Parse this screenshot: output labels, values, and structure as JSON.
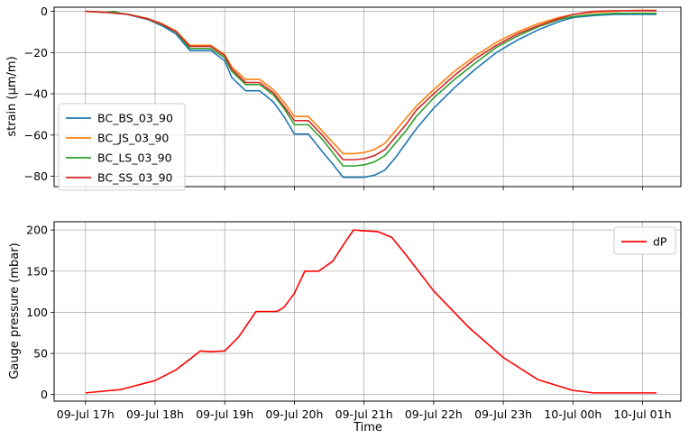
{
  "chart_data": [
    {
      "type": "line",
      "ylabel": "strain (μm/m)",
      "ylim": [
        -85,
        2
      ],
      "yticks": [
        0,
        -20,
        -40,
        -60,
        -80
      ],
      "xlim": [
        -0.45,
        8.55
      ],
      "xtick_positions": [
        0,
        1,
        2,
        3,
        4,
        5,
        6,
        7,
        8
      ],
      "grid": true,
      "legend_position": "center-left",
      "series": [
        {
          "name": "BC_BS_03_90",
          "color": "#1f77b4",
          "x": [
            0.0,
            0.3,
            0.6,
            0.9,
            1.1,
            1.3,
            1.5,
            1.65,
            1.8,
            2.0,
            2.1,
            2.3,
            2.5,
            2.7,
            2.85,
            3.0,
            3.2,
            3.4,
            3.55,
            3.7,
            3.85,
            4.0,
            4.15,
            4.3,
            4.45,
            4.6,
            4.75,
            5.0,
            5.3,
            5.6,
            5.9,
            6.2,
            6.5,
            6.8,
            7.0,
            7.3,
            7.6,
            7.9,
            8.2
          ],
          "y": [
            0,
            -0.5,
            -1.5,
            -4,
            -7,
            -11,
            -19,
            -19,
            -19,
            -24,
            -32,
            -38.5,
            -38.5,
            -44,
            -51,
            -59.5,
            -59.5,
            -68,
            -74,
            -80.5,
            -80.5,
            -80.5,
            -79.5,
            -77,
            -71,
            -64,
            -57,
            -47,
            -37,
            -28,
            -20,
            -14,
            -9,
            -5,
            -3,
            -2,
            -1.5,
            -1.5,
            -1.5
          ]
        },
        {
          "name": "BC_JS_03_90",
          "color": "#ff7f0e",
          "x": [
            0.0,
            0.3,
            0.6,
            0.9,
            1.1,
            1.3,
            1.5,
            1.65,
            1.8,
            2.0,
            2.1,
            2.3,
            2.5,
            2.7,
            2.85,
            3.0,
            3.2,
            3.4,
            3.55,
            3.7,
            3.85,
            4.0,
            4.15,
            4.3,
            4.45,
            4.6,
            4.75,
            5.0,
            5.3,
            5.6,
            5.9,
            6.2,
            6.5,
            6.8,
            7.0,
            7.3,
            7.6,
            7.9,
            8.2
          ],
          "y": [
            0,
            -0.5,
            -1.3,
            -3.5,
            -6,
            -9.5,
            -16.5,
            -16.5,
            -16.5,
            -21,
            -27,
            -33,
            -33,
            -38,
            -44,
            -51,
            -51,
            -58,
            -63.5,
            -69,
            -69,
            -68.5,
            -67,
            -64,
            -58,
            -52,
            -46,
            -38,
            -29,
            -21.5,
            -15,
            -10,
            -6,
            -3,
            -1.5,
            -0.5,
            0,
            0.5,
            0.5
          ]
        },
        {
          "name": "BC_LS_03_90",
          "color": "#2ca02c",
          "x": [
            0.0,
            0.3,
            0.42,
            0.48,
            0.6,
            0.9,
            1.1,
            1.3,
            1.5,
            1.65,
            1.8,
            2.0,
            2.1,
            2.3,
            2.5,
            2.7,
            2.85,
            3.0,
            3.2,
            3.4,
            3.55,
            3.7,
            3.85,
            4.0,
            4.15,
            4.3,
            4.45,
            4.6,
            4.75,
            5.0,
            5.3,
            5.6,
            5.9,
            6.2,
            6.5,
            6.8,
            7.0,
            7.3,
            7.6,
            7.9,
            8.2
          ],
          "y": [
            0,
            -0.5,
            0,
            -0.8,
            -1.4,
            -3.8,
            -6.5,
            -10,
            -18,
            -18,
            -18,
            -22.5,
            -29,
            -35.5,
            -35.5,
            -40.5,
            -47,
            -55,
            -55,
            -62,
            -68.5,
            -75,
            -75,
            -74.5,
            -73,
            -70,
            -64,
            -58,
            -51,
            -42,
            -33,
            -25,
            -17.5,
            -12,
            -7.5,
            -4,
            -2.5,
            -1.5,
            -1,
            -1,
            -1
          ]
        },
        {
          "name": "BC_SS_03_90",
          "color": "#d62728",
          "x": [
            0.0,
            0.3,
            0.6,
            0.9,
            1.1,
            1.3,
            1.5,
            1.65,
            1.8,
            2.0,
            2.1,
            2.3,
            2.5,
            2.7,
            2.85,
            3.0,
            3.2,
            3.4,
            3.55,
            3.7,
            3.85,
            4.0,
            4.15,
            4.3,
            4.45,
            4.6,
            4.75,
            5.0,
            5.3,
            5.6,
            5.9,
            6.2,
            6.5,
            6.8,
            7.0,
            7.3,
            7.6,
            7.9,
            8.2
          ],
          "y": [
            0,
            -0.5,
            -1.4,
            -3.7,
            -6.3,
            -9.8,
            -17,
            -17,
            -17,
            -21.5,
            -28,
            -34.5,
            -34.5,
            -39.5,
            -46,
            -53,
            -53,
            -60,
            -66,
            -72,
            -72,
            -71.5,
            -70,
            -67,
            -61,
            -55,
            -48,
            -40,
            -31,
            -23,
            -16.5,
            -11,
            -7,
            -3.5,
            -1.5,
            0,
            0.3,
            0.3,
            0.3
          ]
        }
      ]
    },
    {
      "type": "line",
      "xlabel": "Time",
      "ylabel": "Gauge pressure (mbar)",
      "ylim": [
        -8,
        210
      ],
      "yticks": [
        0,
        50,
        100,
        150,
        200
      ],
      "xlim": [
        -0.45,
        8.55
      ],
      "xtick_positions": [
        0,
        1,
        2,
        3,
        4,
        5,
        6,
        7,
        8
      ],
      "categories": [
        "09-Jul 17h",
        "09-Jul 18h",
        "09-Jul 19h",
        "09-Jul 20h",
        "09-Jul 21h",
        "09-Jul 22h",
        "09-Jul 23h",
        "10-Jul 00h",
        "10-Jul 01h"
      ],
      "grid": true,
      "legend_position": "top-right",
      "series": [
        {
          "name": "dP",
          "color": "#ff0000",
          "x": [
            0.0,
            0.5,
            1.0,
            1.3,
            1.5,
            1.65,
            1.8,
            2.0,
            2.2,
            2.45,
            2.6,
            2.75,
            2.85,
            3.0,
            3.15,
            3.35,
            3.55,
            3.72,
            3.85,
            4.0,
            4.2,
            4.4,
            4.6,
            5.0,
            5.5,
            6.0,
            6.5,
            7.0,
            7.3,
            7.6,
            8.2
          ],
          "y": [
            2,
            6,
            17,
            30,
            43,
            53,
            52,
            53,
            70,
            101,
            101,
            101,
            106,
            123,
            150,
            150,
            162,
            184,
            200,
            199,
            198,
            191,
            170,
            126,
            82,
            45,
            18,
            5,
            2,
            2,
            2
          ]
        }
      ]
    }
  ]
}
